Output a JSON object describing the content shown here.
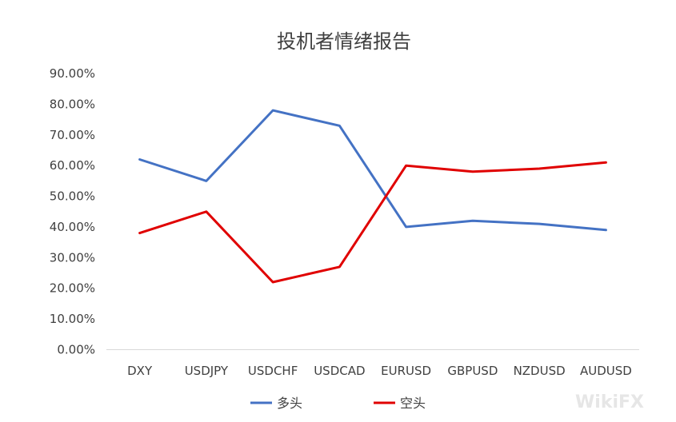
{
  "chart_data": {
    "type": "line",
    "title": "投机者情绪报告",
    "categories": [
      "DXY",
      "USDJPY",
      "USDCHF",
      "USDCAD",
      "EURUSD",
      "GBPUSD",
      "NZDUSD",
      "AUDUSD"
    ],
    "series": [
      {
        "name": "多头",
        "color": "#4472C4",
        "values": [
          0.62,
          0.55,
          0.78,
          0.73,
          0.4,
          0.42,
          0.41,
          0.39
        ]
      },
      {
        "name": "空头",
        "color": "#E00000",
        "values": [
          0.38,
          0.45,
          0.22,
          0.27,
          0.6,
          0.58,
          0.59,
          0.61
        ]
      }
    ],
    "yticks": [
      "0.00%",
      "10.00%",
      "20.00%",
      "30.00%",
      "40.00%",
      "50.00%",
      "60.00%",
      "70.00%",
      "80.00%",
      "90.00%"
    ],
    "ylim": [
      0,
      0.9
    ],
    "legend_position": "bottom",
    "grid": false
  },
  "watermark": "WikiFX"
}
